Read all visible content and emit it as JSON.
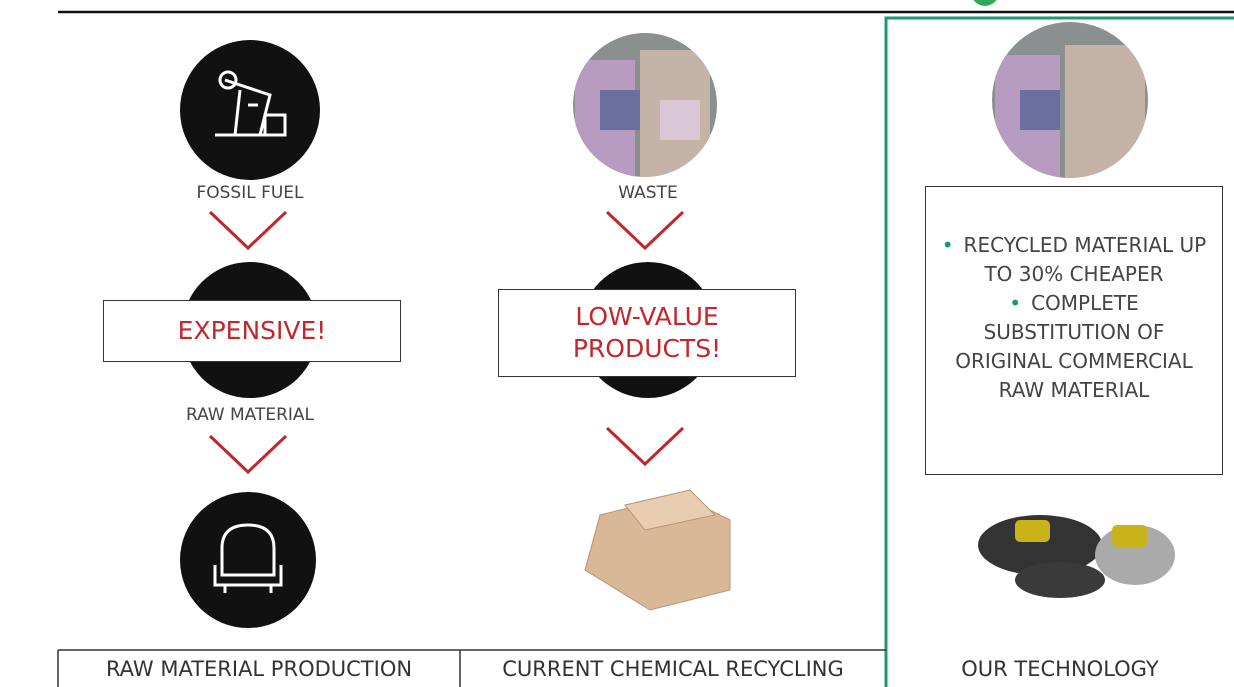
{
  "columns": [
    {
      "footer": "RAW MATERIAL PRODUCTION",
      "steps": [
        "FOSSIL FUEL",
        "RAW MATERIAL"
      ],
      "callout": "EXPENSIVE!"
    },
    {
      "footer": "CURRENT CHEMICAL RECYCLING",
      "steps": [
        "WASTE"
      ],
      "callout": "LOW-VALUE PRODUCTS!"
    },
    {
      "footer": "OUR TECHNOLOGY",
      "bullets": [
        "RECYCLED MATERIAL UP TO 30% CHEAPER",
        "COMPLETE SUBSTITUTION OF ORIGINAL COMMERCIAL RAW MATERIAL"
      ]
    }
  ]
}
